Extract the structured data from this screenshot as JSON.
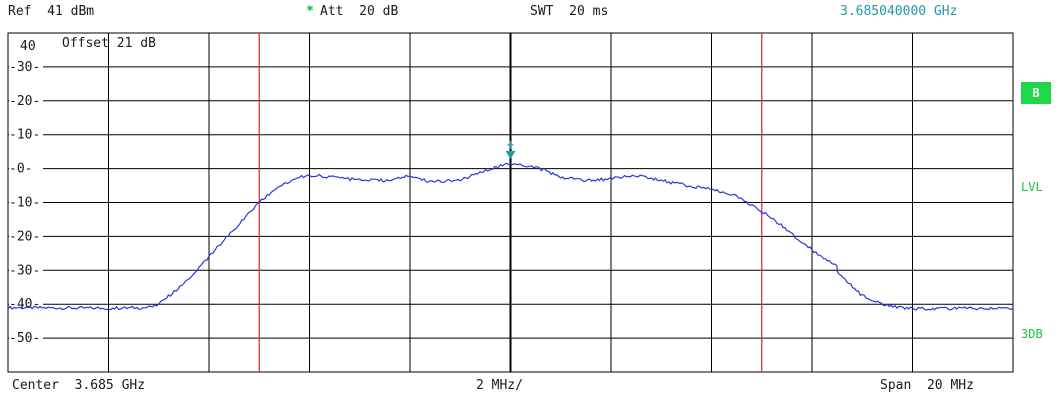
{
  "header": {
    "ref": "Ref  41 dBm",
    "att_star": "*",
    "att": "Att  20 dB",
    "swt": "SWT  20 ms",
    "marker_freq": "3.685040000 GHz"
  },
  "sidebar": {
    "trace_badge": "B",
    "lvl": "LVL",
    "db3": "3DB"
  },
  "plot": {
    "offset_label": "Offset   21 dB",
    "top_label": "40",
    "y_ticks": [
      {
        "value": 30,
        "label": "30"
      },
      {
        "value": 20,
        "label": "20"
      },
      {
        "value": 10,
        "label": "10"
      },
      {
        "value": 0,
        "label": "0"
      },
      {
        "value": -10,
        "label": "-10"
      },
      {
        "value": -20,
        "label": "-20"
      },
      {
        "value": -30,
        "label": "-30"
      },
      {
        "value": -40,
        "label": "-40"
      },
      {
        "value": -50,
        "label": "-50"
      }
    ]
  },
  "footer": {
    "center": "Center  3.685 GHz",
    "div": "2 MHz/",
    "span": "Span  20 MHz"
  },
  "chart_data": {
    "type": "line",
    "xlabel": "",
    "ylabel": "",
    "x_unit": "MHz offset from center",
    "xlim": [
      -10,
      10
    ],
    "ylim": [
      -60,
      40
    ],
    "grid": true,
    "center_freq_ghz": 3.685,
    "span_mhz": 20,
    "colors": {
      "trace": "#2a39d6",
      "red_lines": "#cc2a2a",
      "marker": "#1f9aa6",
      "grid": "#000000"
    },
    "red_line_x": [
      -5.0,
      5.0
    ],
    "marker": {
      "x": 0.0,
      "y": 1.7
    },
    "series": [
      {
        "x": [
          -10.0,
          -8.0,
          -7.2,
          -7.0,
          -6.5,
          -6.0,
          -5.5,
          -5.0,
          -4.6,
          -4.2,
          -4.0,
          -3.5,
          -3.0,
          -2.5,
          -2.0,
          -1.6,
          -1.0,
          -0.5,
          -0.2,
          0.0,
          0.5,
          1.0,
          1.5,
          2.0,
          2.5,
          3.0,
          3.5,
          4.0,
          4.5,
          5.0,
          5.5,
          6.0,
          6.5,
          6.5,
          7.0,
          7.5,
          8.0,
          10.0
        ],
        "y": [
          -41.0,
          -41.2,
          -41.0,
          -40.0,
          -34.0,
          -26.0,
          -18.0,
          -10.0,
          -5.0,
          -2.5,
          -2.0,
          -2.5,
          -3.5,
          -3.5,
          -2.2,
          -3.8,
          -3.5,
          -0.5,
          1.0,
          1.5,
          0.5,
          -2.5,
          -3.5,
          -3.0,
          -2.0,
          -3.5,
          -5.0,
          -6.0,
          -8.0,
          -12.5,
          -18.0,
          -24.0,
          -29.0,
          -30.5,
          -37.5,
          -40.5,
          -41.3,
          -41.2
        ]
      }
    ]
  }
}
